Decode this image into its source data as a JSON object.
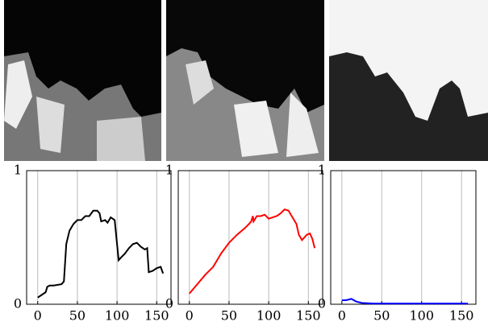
{
  "chart_data": [
    {
      "type": "line",
      "x": [
        0,
        5,
        10,
        12,
        15,
        20,
        30,
        33,
        36,
        40,
        45,
        50,
        55,
        60,
        65,
        70,
        75,
        78,
        80,
        85,
        88,
        92,
        97,
        100,
        102,
        105,
        110,
        115,
        120,
        125,
        130,
        135,
        138,
        140,
        145,
        150,
        155,
        158
      ],
      "series": [
        {
          "color": "#000000",
          "values": [
            0.05,
            0.07,
            0.09,
            0.13,
            0.14,
            0.14,
            0.15,
            0.17,
            0.45,
            0.55,
            0.6,
            0.63,
            0.63,
            0.66,
            0.66,
            0.7,
            0.7,
            0.68,
            0.62,
            0.63,
            0.61,
            0.65,
            0.63,
            0.45,
            0.33,
            0.35,
            0.38,
            0.42,
            0.45,
            0.46,
            0.43,
            0.41,
            0.42,
            0.24,
            0.25,
            0.27,
            0.28,
            0.23
          ]
        }
      ],
      "xlim": [
        -14,
        168
      ],
      "ylim": [
        0,
        1
      ],
      "xticks": [
        0,
        50,
        100,
        150
      ],
      "yticks": [
        0,
        1
      ],
      "grid": true
    },
    {
      "type": "line",
      "x": [
        0,
        10,
        20,
        30,
        35,
        40,
        50,
        60,
        70,
        75,
        78,
        80,
        81,
        85,
        90,
        95,
        100,
        105,
        110,
        115,
        120,
        125,
        130,
        135,
        138,
        142,
        148,
        152,
        155,
        158
      ],
      "series": [
        {
          "color": "#ff0000",
          "values": [
            0.08,
            0.15,
            0.22,
            0.28,
            0.33,
            0.38,
            0.46,
            0.52,
            0.57,
            0.6,
            0.62,
            0.66,
            0.62,
            0.66,
            0.66,
            0.67,
            0.64,
            0.65,
            0.66,
            0.68,
            0.71,
            0.7,
            0.65,
            0.6,
            0.52,
            0.48,
            0.52,
            0.53,
            0.49,
            0.42
          ]
        }
      ],
      "xlim": [
        -14,
        168
      ],
      "ylim": [
        0,
        1
      ],
      "xticks": [
        0,
        50,
        100,
        150
      ],
      "yticks": [
        0,
        1
      ],
      "grid": true
    },
    {
      "type": "line",
      "x": [
        0,
        5,
        12,
        18,
        25,
        40,
        80,
        120,
        158
      ],
      "series": [
        {
          "color": "#0000ff",
          "values": [
            0.03,
            0.03,
            0.04,
            0.02,
            0.01,
            0.005,
            0.005,
            0.005,
            0.005
          ]
        }
      ],
      "xlim": [
        -14,
        168
      ],
      "ylim": [
        0,
        1
      ],
      "xticks": [
        0,
        50,
        100,
        150
      ],
      "yticks": [
        0,
        1
      ],
      "grid": true
    }
  ]
}
